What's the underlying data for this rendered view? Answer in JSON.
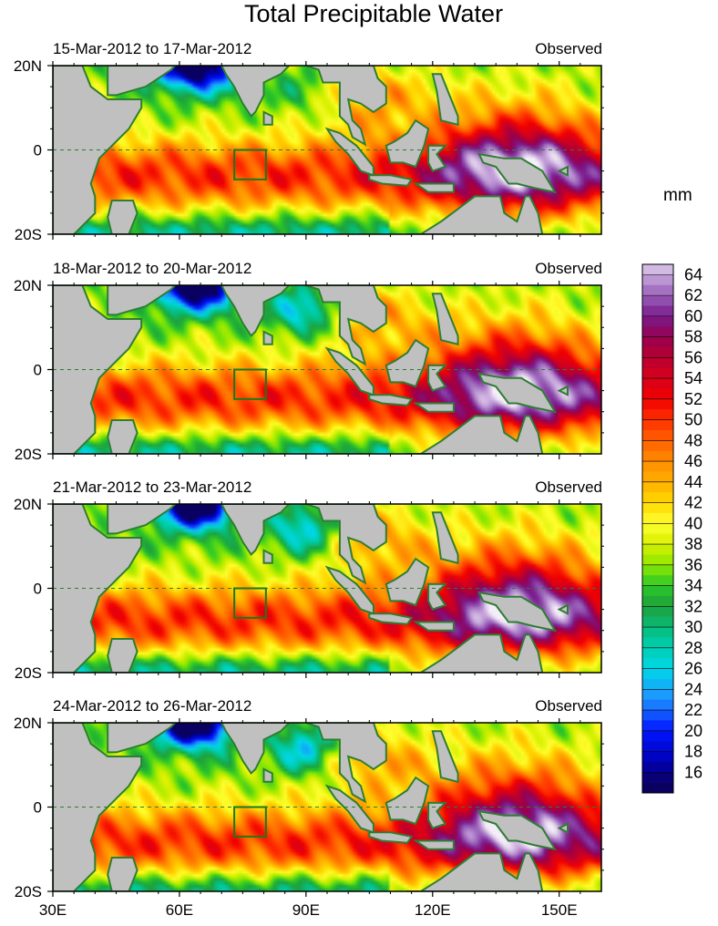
{
  "title": "Total Precipitable Water",
  "colorbar": {
    "unit": "mm",
    "ticks": [
      "64",
      "62",
      "60",
      "58",
      "56",
      "54",
      "52",
      "50",
      "48",
      "46",
      "44",
      "42",
      "40",
      "38",
      "36",
      "34",
      "32",
      "30",
      "28",
      "26",
      "24",
      "22",
      "20",
      "18",
      "16"
    ]
  },
  "colors": {
    "land": "#c0c0c0",
    "coast": "#2e7d32",
    "box": "#1b7a1b",
    "equator": "#2e7d32"
  },
  "chart_data": {
    "type": "heatmap",
    "variable": "Total Precipitable Water",
    "units": "mm",
    "scale_range": [
      15,
      65
    ],
    "lon_range": [
      30,
      160
    ],
    "lat_range": [
      -20,
      20
    ],
    "x_ticks": [
      "30E",
      "60E",
      "90E",
      "120E",
      "150E"
    ],
    "y_ticks": [
      "20N",
      "0",
      "20S"
    ],
    "panels": [
      {
        "dates": "15-Mar-2012 to 17-Mar-2012",
        "tag": "Observed"
      },
      {
        "dates": "18-Mar-2012 to 20-Mar-2012",
        "tag": "Observed"
      },
      {
        "dates": "21-Mar-2012 to 23-Mar-2012",
        "tag": "Observed"
      },
      {
        "dates": "24-Mar-2012 to 26-Mar-2012",
        "tag": "Observed"
      }
    ]
  }
}
